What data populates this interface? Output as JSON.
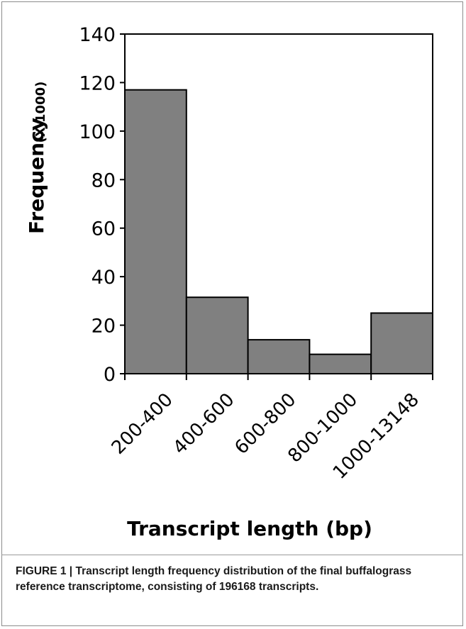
{
  "chart_data": {
    "type": "bar",
    "categories": [
      "200-400",
      "400-600",
      "600-800",
      "800-1000",
      "1000-13148"
    ],
    "values": [
      117,
      31.5,
      14,
      8,
      25
    ],
    "ylim": [
      0,
      140
    ],
    "yticks": [
      "0",
      "20",
      "40",
      "60",
      "80",
      "100",
      "120",
      "140"
    ],
    "ylabel": "Frequency",
    "ylabel_unit": "(X 1000)",
    "xlabel": "Transcript length (bp)",
    "grid": false,
    "bar_color": "#808080",
    "bar_edge_color": "#000000"
  },
  "caption": {
    "lead": "FIGURE 1 |",
    "text": "Transcript length frequency distribution of the final buffalograss reference transcriptome, consisting of 196168 transcripts."
  }
}
